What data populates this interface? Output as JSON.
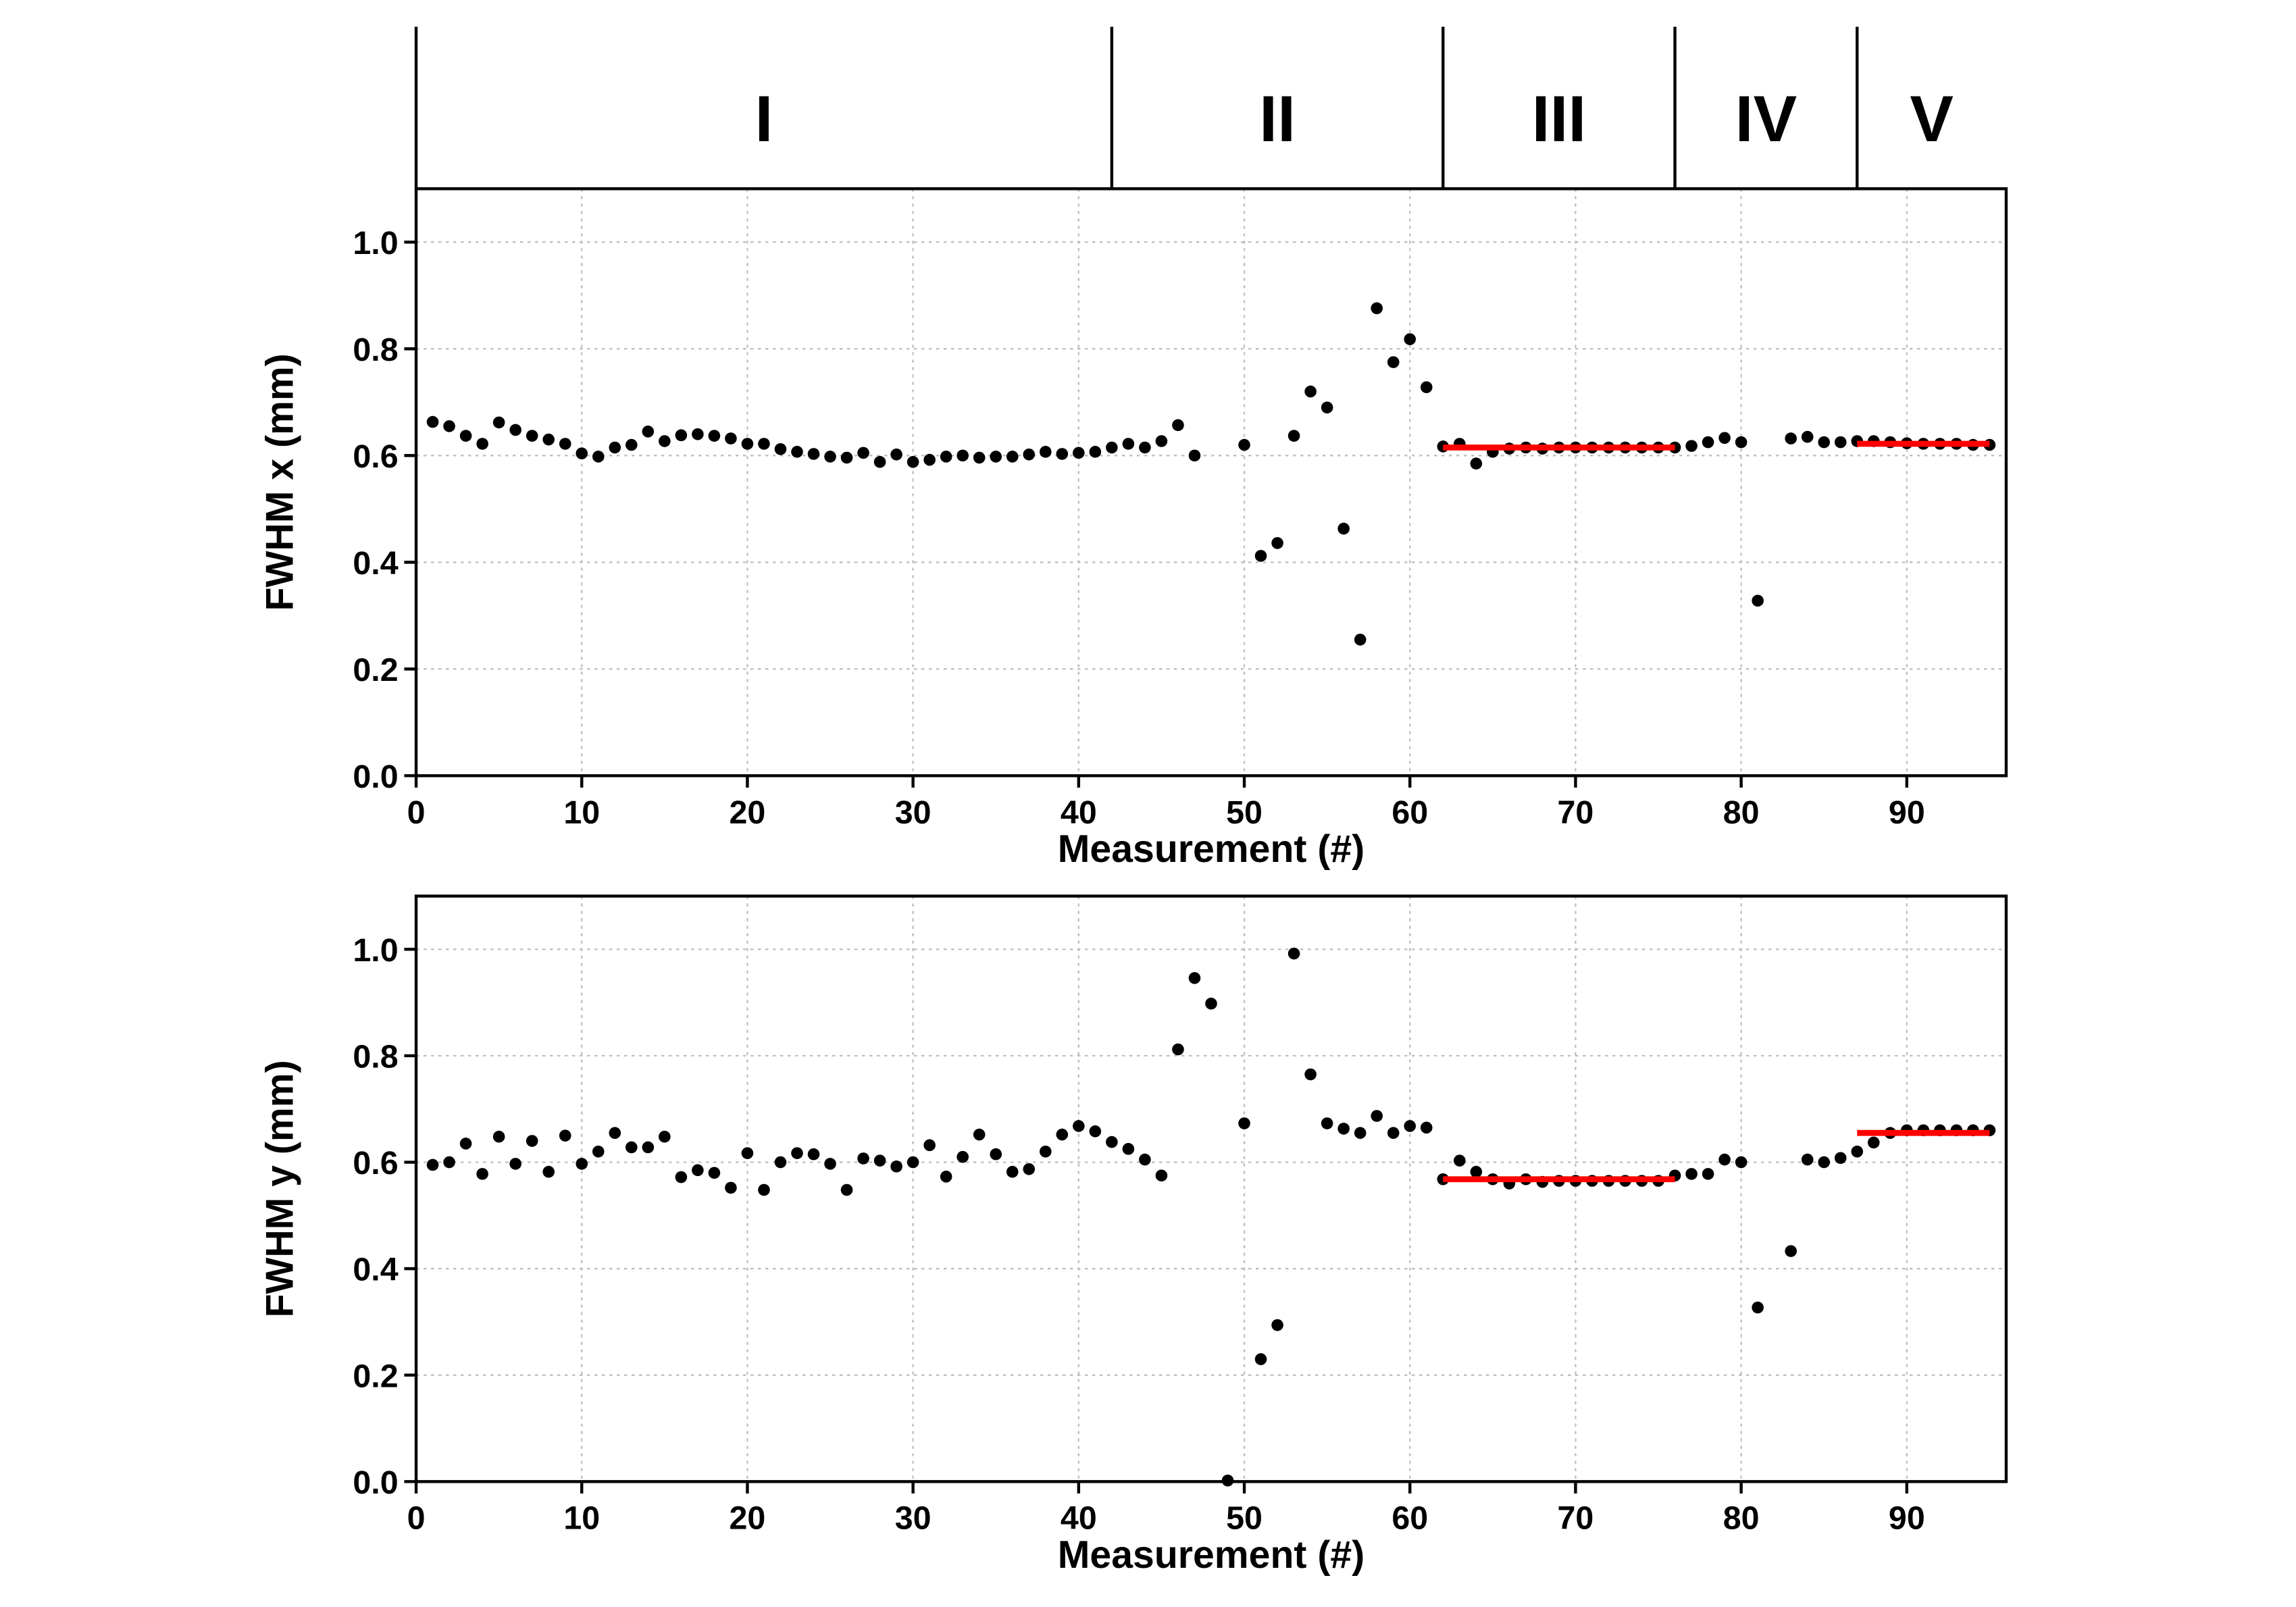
{
  "chart_data": [
    {
      "type": "scatter",
      "ylabel": "FWHM x (mm)",
      "xlabel": "Measurement (#)",
      "color": "#000000",
      "xlim": [
        0,
        96
      ],
      "ylim": [
        0,
        1.1
      ],
      "grid": true,
      "xticks": [
        0,
        10,
        20,
        30,
        40,
        50,
        60,
        70,
        80,
        90
      ],
      "yticks": [
        {
          "value": 0,
          "label": "0.0"
        },
        {
          "value": 0.2,
          "label": "0.2"
        },
        {
          "value": 0.4,
          "label": "0.4"
        },
        {
          "value": 0.6,
          "label": "0.6"
        },
        {
          "value": 0.8,
          "label": "0.8"
        },
        {
          "value": 1.0,
          "label": "1.0"
        }
      ],
      "regions": {
        "labels": [
          "I",
          "II",
          "III",
          "IV",
          "V"
        ],
        "bounds": [
          0,
          42,
          62,
          76,
          87,
          96
        ]
      },
      "x": [
        1,
        2,
        3,
        4,
        5,
        6,
        7,
        8,
        9,
        10,
        11,
        12,
        13,
        14,
        15,
        16,
        17,
        18,
        19,
        20,
        21,
        22,
        23,
        24,
        25,
        26,
        27,
        28,
        29,
        30,
        31,
        32,
        33,
        34,
        35,
        36,
        37,
        38,
        39,
        40,
        41,
        42,
        43,
        44,
        45,
        46,
        47,
        50,
        51,
        52,
        53,
        54,
        55,
        56,
        57,
        58,
        59,
        60,
        61,
        62,
        63,
        64,
        65,
        66,
        67,
        68,
        69,
        70,
        71,
        72,
        73,
        74,
        75,
        76,
        77,
        78,
        79,
        80,
        81,
        83,
        84,
        85,
        86,
        87,
        88,
        89,
        90,
        91,
        92,
        93,
        94,
        95
      ],
      "values": [
        0.663,
        0.655,
        0.637,
        0.622,
        0.662,
        0.648,
        0.637,
        0.63,
        0.622,
        0.604,
        0.598,
        0.615,
        0.62,
        0.645,
        0.627,
        0.638,
        0.64,
        0.637,
        0.632,
        0.622,
        0.622,
        0.612,
        0.607,
        0.603,
        0.598,
        0.596,
        0.605,
        0.588,
        0.602,
        0.588,
        0.592,
        0.598,
        0.6,
        0.596,
        0.598,
        0.598,
        0.602,
        0.607,
        0.603,
        0.605,
        0.607,
        0.615,
        0.622,
        0.615,
        0.627,
        0.657,
        0.6,
        0.62,
        0.412,
        0.436,
        0.637,
        0.72,
        0.69,
        0.463,
        0.255,
        0.876,
        0.775,
        0.818,
        0.728,
        0.617,
        0.622,
        0.585,
        0.607,
        0.613,
        0.615,
        0.613,
        0.615,
        0.615,
        0.615,
        0.615,
        0.615,
        0.615,
        0.615,
        0.615,
        0.618,
        0.625,
        0.633,
        0.625,
        0.328,
        0.632,
        0.635,
        0.625,
        0.625,
        0.627,
        0.627,
        0.625,
        0.623,
        0.622,
        0.622,
        0.622,
        0.62,
        0.62
      ],
      "fits": [
        {
          "x": [
            62,
            76
          ],
          "value": 0.615,
          "color": "#ff0000"
        },
        {
          "x": [
            87,
            95
          ],
          "value": 0.622,
          "color": "#ff0000"
        }
      ]
    },
    {
      "type": "scatter",
      "ylabel": "FWHM y (mm)",
      "xlabel": "Measurement (#)",
      "color": "#000000",
      "xlim": [
        0,
        96
      ],
      "ylim": [
        0,
        1.1
      ],
      "grid": true,
      "xticks": [
        0,
        10,
        20,
        30,
        40,
        50,
        60,
        70,
        80,
        90
      ],
      "yticks": [
        {
          "value": 0,
          "label": "0.0"
        },
        {
          "value": 0.2,
          "label": "0.2"
        },
        {
          "value": 0.4,
          "label": "0.4"
        },
        {
          "value": 0.6,
          "label": "0.6"
        },
        {
          "value": 0.8,
          "label": "0.8"
        },
        {
          "value": 1.0,
          "label": "1.0"
        }
      ],
      "x": [
        1,
        2,
        3,
        4,
        5,
        6,
        7,
        8,
        9,
        10,
        11,
        12,
        13,
        14,
        15,
        16,
        17,
        18,
        19,
        20,
        21,
        22,
        23,
        24,
        25,
        26,
        27,
        28,
        29,
        30,
        31,
        32,
        33,
        34,
        35,
        36,
        37,
        38,
        39,
        40,
        41,
        42,
        43,
        44,
        45,
        46,
        47,
        48,
        49,
        50,
        51,
        52,
        53,
        54,
        55,
        56,
        57,
        58,
        59,
        60,
        61,
        62,
        63,
        64,
        65,
        66,
        67,
        68,
        69,
        70,
        71,
        72,
        73,
        74,
        75,
        76,
        77,
        78,
        79,
        80,
        81,
        83,
        84,
        85,
        86,
        87,
        88,
        89,
        90,
        91,
        92,
        93,
        94,
        95
      ],
      "values": [
        0.595,
        0.6,
        0.635,
        0.578,
        0.648,
        0.597,
        0.64,
        0.582,
        0.65,
        0.597,
        0.62,
        0.655,
        0.628,
        0.628,
        0.648,
        0.572,
        0.585,
        0.58,
        0.552,
        0.617,
        0.548,
        0.6,
        0.617,
        0.615,
        0.597,
        0.548,
        0.607,
        0.603,
        0.592,
        0.6,
        0.632,
        0.573,
        0.61,
        0.652,
        0.615,
        0.582,
        0.587,
        0.62,
        0.652,
        0.668,
        0.658,
        0.638,
        0.625,
        0.605,
        0.575,
        0.812,
        0.946,
        0.898,
        0.002,
        0.673,
        0.23,
        0.294,
        0.992,
        0.765,
        0.673,
        0.663,
        0.655,
        0.687,
        0.655,
        0.668,
        0.665,
        0.568,
        0.603,
        0.582,
        0.568,
        0.56,
        0.568,
        0.563,
        0.565,
        0.565,
        0.565,
        0.565,
        0.565,
        0.565,
        0.565,
        0.575,
        0.578,
        0.578,
        0.605,
        0.6,
        0.327,
        0.433,
        0.605,
        0.6,
        0.608,
        0.62,
        0.637,
        0.655,
        0.66,
        0.66,
        0.66,
        0.66,
        0.66,
        0.66
      ],
      "fits": [
        {
          "x": [
            62,
            76
          ],
          "value": 0.568,
          "color": "#ff0000"
        },
        {
          "x": [
            87,
            95
          ],
          "value": 0.655,
          "color": "#ff0000"
        }
      ]
    }
  ]
}
